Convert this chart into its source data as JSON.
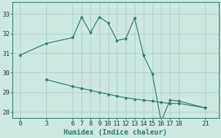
{
  "xlabel": "Humidex (Indice chaleur)",
  "background_color": "#cce8e0",
  "line_color": "#2e7d6e",
  "grid_color": "#aacccc",
  "xlim": [
    -0.8,
    22.5
  ],
  "ylim": [
    27.7,
    33.6
  ],
  "yticks": [
    28,
    29,
    30,
    31,
    32,
    33
  ],
  "xticks": [
    0,
    3,
    6,
    7,
    8,
    9,
    10,
    11,
    12,
    13,
    14,
    15,
    16,
    17,
    18,
    21
  ],
  "series1_x": [
    0,
    3,
    6,
    7,
    8,
    9,
    10,
    11,
    12,
    13,
    14,
    15,
    16,
    17,
    18,
    21
  ],
  "series1_y": [
    30.9,
    31.5,
    31.8,
    32.85,
    32.05,
    32.85,
    32.55,
    31.65,
    31.75,
    32.8,
    30.9,
    29.95,
    27.5,
    28.6,
    28.55,
    28.2
  ],
  "series2_x": [
    3,
    6,
    7,
    8,
    9,
    10,
    11,
    12,
    13,
    14,
    15,
    16,
    17,
    18,
    21
  ],
  "series2_y": [
    29.65,
    29.3,
    29.2,
    29.1,
    29.0,
    28.9,
    28.8,
    28.72,
    28.65,
    28.6,
    28.55,
    28.48,
    28.43,
    28.43,
    28.2
  ],
  "tick_fontsize": 6.5,
  "xlabel_fontsize": 7.5,
  "xlabel_fontweight": "bold"
}
